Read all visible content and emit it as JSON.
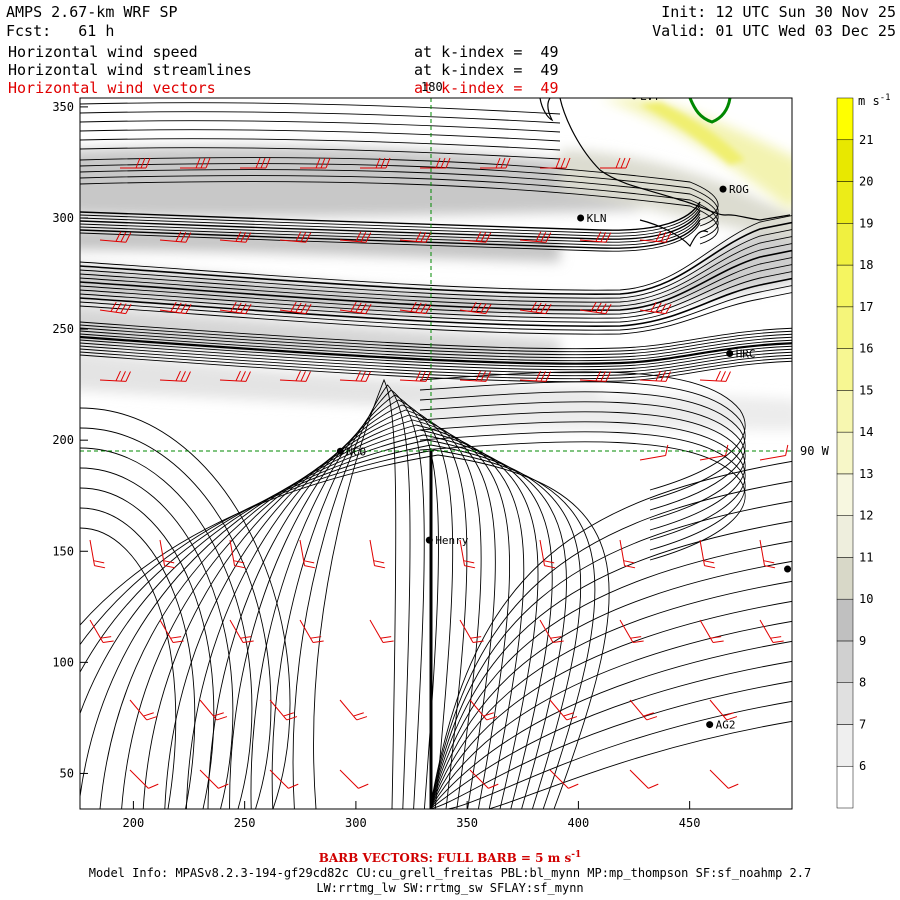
{
  "header": {
    "title": "AMPS 2.67-km WRF SP",
    "forecast": "Fcst:   61 h",
    "init": "Init: 12 UTC Sun 30 Nov 25",
    "valid": "Valid: 01 UTC Wed 03 Dec 25",
    "fields": [
      {
        "name": "Horizontal wind speed",
        "level": "at k-index =  49",
        "color": "#000000"
      },
      {
        "name": "Horizontal wind streamlines",
        "level": "at k-index =  49",
        "color": "#000000"
      },
      {
        "name": "Horizontal wind vectors",
        "level": "at k-index =  49",
        "color": "#e00000"
      }
    ]
  },
  "map": {
    "x_ticks": [
      "200",
      "250",
      "300",
      "350",
      "400",
      "450"
    ],
    "y_ticks": [
      "50",
      "100",
      "150",
      "200",
      "250",
      "300",
      "350"
    ],
    "grid_labels": {
      "meridian": "180",
      "parallel": "90 W"
    },
    "stations": [
      {
        "name": "LVT",
        "x": 425,
        "y": 355
      },
      {
        "name": "ROG",
        "x": 465,
        "y": 313
      },
      {
        "name": "KLN",
        "x": 401,
        "y": 300
      },
      {
        "name": "HRC",
        "x": 468,
        "y": 239
      },
      {
        "name": "NCO",
        "x": 293,
        "y": 195
      },
      {
        "name": "Henry",
        "x": 333,
        "y": 155
      },
      {
        "name": "AG2",
        "x": 459,
        "y": 72
      },
      {
        "name": "",
        "x": 494,
        "y": 142
      }
    ]
  },
  "colorbar": {
    "unit": "m s",
    "unit_exp": "-1",
    "levels": [
      "6",
      "7",
      "8",
      "9",
      "10",
      "11",
      "12",
      "13",
      "14",
      "15",
      "16",
      "17",
      "18",
      "19",
      "20",
      "21"
    ],
    "colors": [
      "#ffffff",
      "#efefef",
      "#e0e0e0",
      "#d0d0d0",
      "#c0c0c0",
      "#d8d8c8",
      "#eeeedd",
      "#f7f7e0",
      "#f7f7c8",
      "#f7f7b0",
      "#f7f792",
      "#f5f57a",
      "#f5f560",
      "#f0f040",
      "#ecec18",
      "#e8e800",
      "#ffff00"
    ]
  },
  "footer": {
    "barb_note": "BARB VECTORS: FULL BARB = 5 m s",
    "barb_exp": "-1",
    "model_info": "Model Info: MPASv8.2.3-194-gf29cd82c CU:cu_grell_freitas PBL:bl_mynn MP:mp_thompson SF:sf_noahmp 2.7",
    "physics": "LW:rrtmg_lw SW:rrtmg_sw SFLAY:sf_mynn"
  }
}
